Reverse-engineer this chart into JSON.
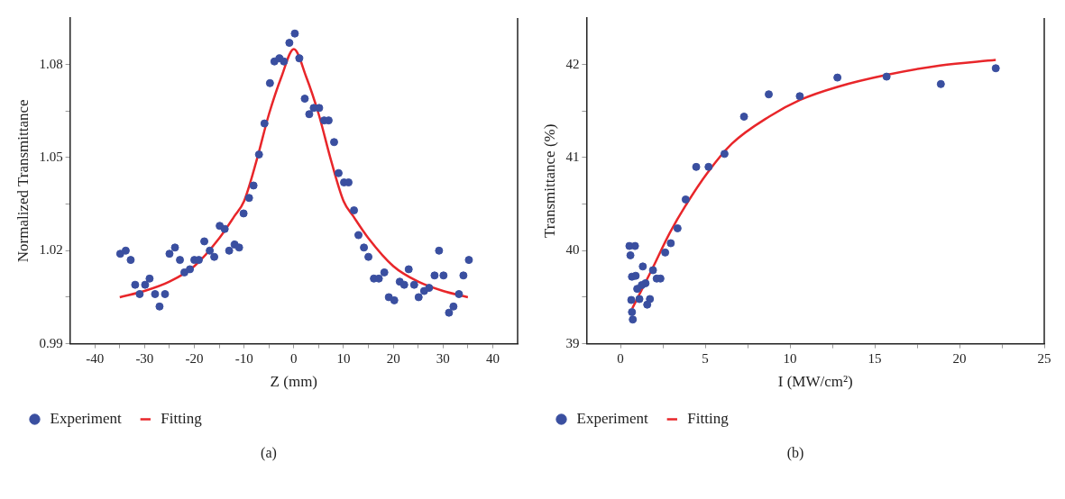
{
  "chart_data": [
    {
      "type": "scatter",
      "xlabel": "Z (mm)",
      "ylabel": "Normalized Transmittance",
      "xlim": [
        -45,
        45
      ],
      "ylim": [
        0.99,
        1.095
      ],
      "xticks": [
        -40,
        {
          "value": -35,
          "label": null
        },
        -30,
        {
          "value": -25,
          "label": null
        },
        -20,
        {
          "value": -15,
          "label": null
        },
        -10,
        {
          "value": -5,
          "label": null
        },
        0,
        {
          "value": 5,
          "label": null
        },
        10,
        {
          "value": 15,
          "label": null
        },
        20,
        {
          "value": 25,
          "label": null
        },
        30,
        {
          "value": 35,
          "label": null
        },
        40
      ],
      "yticks": [
        0.99,
        {
          "value": 1.005,
          "label": null
        },
        1.02,
        {
          "value": 1.035,
          "label": null
        },
        1.05,
        {
          "value": 1.065,
          "label": null
        },
        1.08
      ],
      "grid": false,
      "legend": "bottom",
      "annotations": [
        "(a)"
      ],
      "series": [
        {
          "name": "Experiment",
          "type": "scatter",
          "marker": "circle",
          "color": "#3a4fa0",
          "x": [
            -34.9,
            -33.8,
            -32.8,
            -31.9,
            -31.0,
            -29.9,
            -29.0,
            -27.9,
            -27.0,
            -25.9,
            -25.0,
            -23.9,
            -22.9,
            -22.0,
            -20.9,
            -20.0,
            -19.1,
            -18.0,
            -16.9,
            -16.0,
            -14.9,
            -13.9,
            -13.0,
            -11.9,
            -11.0,
            -10.1,
            -9.0,
            -8.1,
            -7.0,
            -5.9,
            -4.8,
            -3.9,
            -2.9,
            -2.0,
            -0.9,
            0.2,
            1.1,
            2.2,
            3.1,
            4.0,
            5.1,
            6.1,
            7.0,
            8.1,
            9.0,
            10.1,
            11.0,
            12.1,
            13.0,
            14.1,
            15.0,
            16.1,
            17.1,
            18.2,
            19.1,
            20.2,
            21.3,
            22.2,
            23.1,
            24.2,
            25.1,
            26.2,
            27.2,
            28.3,
            29.2,
            30.1,
            31.2,
            32.1,
            33.2,
            34.1,
            35.2
          ],
          "values": [
            1.019,
            1.02,
            1.017,
            1.009,
            1.006,
            1.009,
            1.011,
            1.006,
            1.002,
            1.006,
            1.019,
            1.021,
            1.017,
            1.013,
            1.014,
            1.017,
            1.017,
            1.023,
            1.02,
            1.018,
            1.028,
            1.027,
            1.02,
            1.022,
            1.021,
            1.032,
            1.037,
            1.041,
            1.051,
            1.061,
            1.074,
            1.081,
            1.082,
            1.081,
            1.087,
            1.09,
            1.082,
            1.069,
            1.064,
            1.066,
            1.066,
            1.062,
            1.062,
            1.055,
            1.045,
            1.042,
            1.042,
            1.033,
            1.025,
            1.021,
            1.018,
            1.011,
            1.011,
            1.013,
            1.005,
            1.004,
            1.01,
            1.009,
            1.014,
            1.009,
            1.005,
            1.007,
            1.008,
            1.012,
            1.02,
            1.012,
            1.0,
            1.002,
            1.006,
            1.012,
            1.017
          ]
        },
        {
          "name": "Fitting",
          "type": "line",
          "marker": "none",
          "line_style": "solid",
          "color": "#e8262a",
          "x": [
            -35,
            -30,
            -25,
            -20,
            -15,
            -12,
            -10,
            -7.5,
            -5,
            -2.5,
            0,
            2.5,
            5,
            7.5,
            10,
            12,
            15,
            20,
            25,
            30,
            35
          ],
          "values": [
            1.005,
            1.007,
            1.01,
            1.015,
            1.024,
            1.031,
            1.036,
            1.049,
            1.064,
            1.076,
            1.085,
            1.076,
            1.064,
            1.049,
            1.036,
            1.031,
            1.024,
            1.015,
            1.01,
            1.007,
            1.005
          ]
        }
      ]
    },
    {
      "type": "scatter",
      "xlabel": "I (MW/cm²)",
      "ylabel": "Transmittance (%)",
      "xlim": [
        -2,
        25
      ],
      "ylim": [
        39,
        42.5
      ],
      "xticks": [
        0,
        {
          "value": 2.5,
          "label": null
        },
        5,
        {
          "value": 7.5,
          "label": null
        },
        10,
        {
          "value": 12.5,
          "label": null
        },
        15,
        {
          "value": 17.5,
          "label": null
        },
        20,
        {
          "value": 22.5,
          "label": null
        },
        25
      ],
      "yticks": [
        39,
        {
          "value": 39.5,
          "label": null
        },
        40,
        {
          "value": 40.5,
          "label": null
        },
        41,
        {
          "value": 41.5,
          "label": null
        },
        42
      ],
      "grid": false,
      "legend": "bottom",
      "annotations": [
        "(b)"
      ],
      "series": [
        {
          "name": "Experiment",
          "type": "scatter",
          "marker": "circle",
          "color": "#3a4fa0",
          "x": [
            0.53,
            0.86,
            0.59,
            1.32,
            1.92,
            0.68,
            0.9,
            2.14,
            2.36,
            1.48,
            1.26,
            0.99,
            0.64,
            1.12,
            1.74,
            1.58,
            0.68,
            0.73,
            2.64,
            2.97,
            3.37,
            3.85,
            4.47,
            5.2,
            6.14,
            7.29,
            8.75,
            10.58,
            12.8,
            15.7,
            18.9,
            22.14
          ],
          "values": [
            40.05,
            40.05,
            39.95,
            39.83,
            39.79,
            39.72,
            39.73,
            39.7,
            39.7,
            39.65,
            39.63,
            39.59,
            39.47,
            39.48,
            39.48,
            39.42,
            39.34,
            39.26,
            39.98,
            40.08,
            40.24,
            40.55,
            40.9,
            40.9,
            41.04,
            41.44,
            41.68,
            41.66,
            41.86,
            41.87,
            41.79,
            41.96
          ]
        },
        {
          "name": "Fitting",
          "type": "line",
          "marker": "none",
          "line_style": "solid",
          "color": "#e8262a",
          "x": [
            0.7,
            1.81,
            2.91,
            3.83,
            5.11,
            6.58,
            8.77,
            10.6,
            12.8,
            15.73,
            18.85,
            22.14
          ],
          "values": [
            39.38,
            39.78,
            40.19,
            40.48,
            40.83,
            41.15,
            41.44,
            41.62,
            41.76,
            41.89,
            41.99,
            42.05
          ]
        }
      ]
    }
  ]
}
